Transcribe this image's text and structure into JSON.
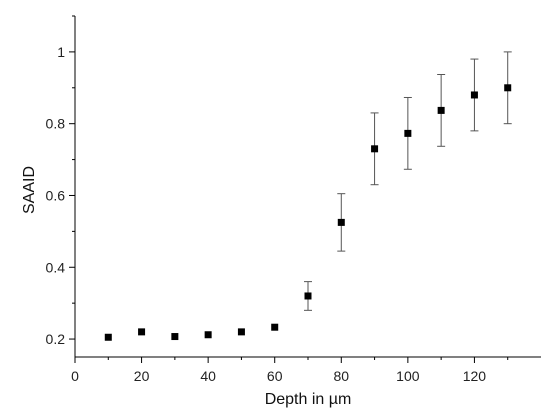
{
  "chart_data": {
    "type": "scatter",
    "title": "",
    "xlabel": "Depth in µm",
    "ylabel": "SAAID",
    "xlim": [
      0,
      140
    ],
    "ylim": [
      0.15,
      1.1
    ],
    "x_ticks": [
      0,
      20,
      40,
      60,
      80,
      100,
      120
    ],
    "y_ticks": [
      0.2,
      0.4,
      0.6,
      0.8,
      1
    ],
    "x_tick_labels": [
      "0",
      "20",
      "40",
      "60",
      "80",
      "100",
      "120"
    ],
    "y_tick_labels": [
      "0.2",
      "0.4",
      "0.6",
      "0.8",
      "1"
    ],
    "grid": false,
    "marker": "square",
    "marker_color": "#000000",
    "points": [
      {
        "x": 10,
        "y": 0.205,
        "err": 0
      },
      {
        "x": 20,
        "y": 0.22,
        "err": 0
      },
      {
        "x": 30,
        "y": 0.207,
        "err": 0
      },
      {
        "x": 40,
        "y": 0.212,
        "err": 0
      },
      {
        "x": 50,
        "y": 0.22,
        "err": 0
      },
      {
        "x": 60,
        "y": 0.233,
        "err": 0
      },
      {
        "x": 70,
        "y": 0.32,
        "err": 0.04
      },
      {
        "x": 80,
        "y": 0.525,
        "err": 0.08
      },
      {
        "x": 90,
        "y": 0.73,
        "err": 0.1
      },
      {
        "x": 100,
        "y": 0.773,
        "err": 0.1
      },
      {
        "x": 110,
        "y": 0.837,
        "err": 0.1
      },
      {
        "x": 120,
        "y": 0.88,
        "err": 0.1
      },
      {
        "x": 130,
        "y": 0.9,
        "err": 0.1
      }
    ]
  }
}
